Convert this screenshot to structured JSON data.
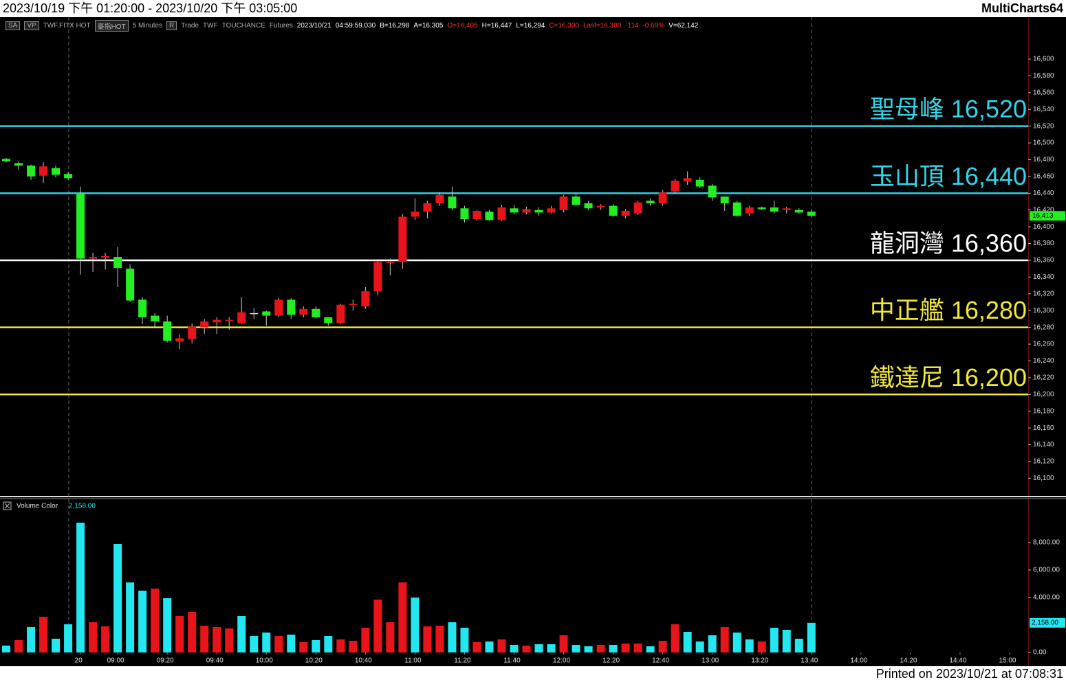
{
  "header": {
    "title": "2023/10/19 下午 01:20:00 - 2023/10/20 下午 03:05:00",
    "app": "MultiCharts64",
    "toolbar": [
      {
        "text": "SA",
        "boxed": true
      },
      {
        "text": "VP",
        "boxed": true
      },
      {
        "text": "TWF.FITX HOT"
      },
      {
        "text": "臺指HOT",
        "boxed": true
      },
      {
        "text": "5 Minutes"
      },
      {
        "text": "R",
        "boxed": true
      },
      {
        "text": "Trade"
      },
      {
        "text": "TWF"
      },
      {
        "text": "TOUCHANCE"
      },
      {
        "text": "Futures"
      },
      {
        "text": "2023/10/21",
        "color": "#ffffff"
      },
      {
        "text": "04:59:59.030",
        "color": "#ffffff"
      },
      {
        "text": "B=16,298",
        "color": "#ffffff"
      },
      {
        "text": "A=16,305",
        "color": "#ffffff"
      },
      {
        "text": "O=16,405",
        "color": "#ff3030"
      },
      {
        "text": "H=16,447",
        "color": "#ffffff"
      },
      {
        "text": "L=16,294",
        "color": "#ffffff"
      },
      {
        "text": "C=16,300",
        "color": "#ff3030"
      },
      {
        "text": "Last=16,300",
        "color": "#ff3030"
      },
      {
        "text": "-114",
        "color": "#ff3030"
      },
      {
        "text": "-0.69%",
        "color": "#ff3030"
      },
      {
        "text": "V=62,142",
        "color": "#ffffff"
      }
    ]
  },
  "footer": "Printed on 2023/10/21 at 07:08:31",
  "chart_data": [
    {
      "type": "candlestick",
      "up_color": "#e8141a",
      "down_color": "#22ee22",
      "xlim": [
        -0.5,
        82.5
      ],
      "ylim": [
        16079,
        16650
      ],
      "open": [
        16481,
        16476,
        16473,
        16461,
        16470,
        16463,
        16440,
        16362,
        16363,
        16364,
        16350,
        16313,
        16294,
        16287,
        16263,
        16266,
        16280,
        16286,
        16288,
        16285,
        16297,
        16299,
        16294,
        16313,
        16295,
        16302,
        16292,
        16285,
        16307,
        16305,
        16323,
        16357,
        16358,
        16412,
        16418,
        16428,
        16436,
        16422,
        16409,
        16418,
        16408,
        16422,
        16417,
        16420,
        16417,
        16420,
        16436,
        16428,
        16423,
        16425,
        16413,
        16416,
        16431,
        16428,
        16442,
        16454,
        16456,
        16449,
        16436,
        16429,
        16416,
        16423,
        16423,
        16420,
        16420,
        16418
      ],
      "high": [
        16482,
        16478,
        16474,
        16477,
        16473,
        16465,
        16448,
        16369,
        16369,
        16376,
        16355,
        16316,
        16297,
        16294,
        16272,
        16285,
        16290,
        16292,
        16292,
        16316,
        16303,
        16300,
        16315,
        16315,
        16305,
        16305,
        16292,
        16308,
        16313,
        16328,
        16361,
        16362,
        16415,
        16434,
        16431,
        16441,
        16448,
        16425,
        16420,
        16420,
        16426,
        16426,
        16424,
        16423,
        16425,
        16438,
        16440,
        16431,
        16427,
        16427,
        16421,
        16431,
        16434,
        16444,
        16457,
        16466,
        16459,
        16451,
        16436,
        16431,
        16425,
        16424,
        16431,
        16424,
        16422,
        16420
      ],
      "low": [
        16477,
        16468,
        16456,
        16452,
        16459,
        16456,
        16343,
        16346,
        16349,
        16328,
        16310,
        16284,
        16280,
        16262,
        16254,
        16261,
        16272,
        16272,
        16277,
        16284,
        16290,
        16282,
        16292,
        16290,
        16292,
        16291,
        16282,
        16284,
        16300,
        16302,
        16318,
        16342,
        16350,
        16408,
        16410,
        16425,
        16420,
        16405,
        16407,
        16407,
        16407,
        16415,
        16415,
        16413,
        16416,
        16417,
        16425,
        16420,
        16420,
        16412,
        16410,
        16414,
        16425,
        16425,
        16440,
        16450,
        16446,
        16431,
        16419,
        16412,
        16413,
        16420,
        16416,
        16416,
        16415,
        16412
      ],
      "close": [
        16478,
        16473,
        16460,
        16472,
        16462,
        16458,
        16362,
        16364,
        16365,
        16351,
        16312,
        16292,
        16287,
        16264,
        16267,
        16281,
        16287,
        16289,
        16289,
        16298,
        16297,
        16294,
        16313,
        16295,
        16302,
        16292,
        16285,
        16307,
        16308,
        16323,
        16358,
        16358,
        16412,
        16418,
        16428,
        16438,
        16422,
        16409,
        16419,
        16408,
        16423,
        16417,
        16421,
        16417,
        16422,
        16436,
        16426,
        16422,
        16425,
        16413,
        16419,
        16429,
        16428,
        16441,
        16455,
        16458,
        16448,
        16435,
        16428,
        16413,
        16423,
        16421,
        16418,
        16422,
        16417,
        16413
      ],
      "yticks": [
        {
          "value": 16100,
          "label": "16,100"
        },
        {
          "value": 16120,
          "label": "16,120"
        },
        {
          "value": 16140,
          "label": "16,140"
        },
        {
          "value": 16160,
          "label": "16,160"
        },
        {
          "value": 16180,
          "label": "16,180"
        },
        {
          "value": 16200,
          "label": "16,200"
        },
        {
          "value": 16220,
          "label": "16,220"
        },
        {
          "value": 16240,
          "label": "16,240"
        },
        {
          "value": 16260,
          "label": "16,260"
        },
        {
          "value": 16280,
          "label": "16,280"
        },
        {
          "value": 16300,
          "label": "16,300"
        },
        {
          "value": 16320,
          "label": "16,320"
        },
        {
          "value": 16340,
          "label": "16,340"
        },
        {
          "value": 16360,
          "label": "16,360"
        },
        {
          "value": 16380,
          "label": "16,380"
        },
        {
          "value": 16400,
          "label": "16,400"
        },
        {
          "value": 16420,
          "label": "16,420"
        },
        {
          "value": 16440,
          "label": "16,440"
        },
        {
          "value": 16460,
          "label": "16,460"
        },
        {
          "value": 16480,
          "label": "16,480"
        },
        {
          "value": 16500,
          "label": "16,500"
        },
        {
          "value": 16520,
          "label": "16,520"
        },
        {
          "value": 16540,
          "label": "16,540"
        },
        {
          "value": 16560,
          "label": "16,560"
        },
        {
          "value": 16580,
          "label": "16,580"
        },
        {
          "value": 16600,
          "label": "16,600"
        }
      ],
      "levels": [
        {
          "label": "聖母峰 16,520",
          "value": 16520,
          "color": "#33d4e8"
        },
        {
          "label": "玉山頂 16,440",
          "value": 16440,
          "color": "#33d4e8"
        },
        {
          "label": "龍洞灣 16,360",
          "value": 16360,
          "color": "#ffffff"
        },
        {
          "label": "中正艦 16,280",
          "value": 16280,
          "color": "#f2e83a"
        },
        {
          "label": "鐵達尼 16,200",
          "value": 16200,
          "color": "#f2e83a"
        }
      ],
      "last_price": {
        "value": 16413,
        "label": "16,413"
      }
    },
    {
      "type": "bar",
      "title": "Volume Color",
      "current_label": "2,158.00",
      "xlim": [
        -0.5,
        82.5
      ],
      "ylim": [
        0,
        11100
      ],
      "values": [
        500,
        900,
        1850,
        2600,
        1000,
        2050,
        9450,
        2200,
        1900,
        7900,
        5100,
        4500,
        4650,
        3950,
        2650,
        2950,
        1950,
        1850,
        1750,
        2650,
        1200,
        1450,
        1200,
        1300,
        750,
        900,
        1200,
        950,
        850,
        1800,
        3850,
        2200,
        5100,
        4000,
        1900,
        1950,
        2200,
        1800,
        750,
        800,
        950,
        550,
        500,
        600,
        600,
        1250,
        550,
        450,
        550,
        550,
        650,
        650,
        450,
        850,
        2050,
        1500,
        800,
        1250,
        1850,
        1450,
        950,
        800,
        1800,
        1650,
        1000,
        2158
      ],
      "colors": [
        "#22e6f0",
        "#e8141a",
        "#22e6f0",
        "#e8141a",
        "#22e6f0",
        "#22e6f0",
        "#22e6f0",
        "#e8141a",
        "#e8141a",
        "#22e6f0",
        "#22e6f0",
        "#22e6f0",
        "#e8141a",
        "#22e6f0",
        "#e8141a",
        "#e8141a",
        "#e8141a",
        "#e8141a",
        "#e8141a",
        "#22e6f0",
        "#22e6f0",
        "#22e6f0",
        "#e8141a",
        "#22e6f0",
        "#e8141a",
        "#22e6f0",
        "#22e6f0",
        "#e8141a",
        "#e8141a",
        "#e8141a",
        "#e8141a",
        "#e8141a",
        "#e8141a",
        "#22e6f0",
        "#e8141a",
        "#e8141a",
        "#22e6f0",
        "#22e6f0",
        "#e8141a",
        "#22e6f0",
        "#e8141a",
        "#22e6f0",
        "#e8141a",
        "#22e6f0",
        "#22e6f0",
        "#e8141a",
        "#22e6f0",
        "#22e6f0",
        "#e8141a",
        "#22e6f0",
        "#e8141a",
        "#e8141a",
        "#22e6f0",
        "#e8141a",
        "#e8141a",
        "#22e6f0",
        "#22e6f0",
        "#22e6f0",
        "#e8141a",
        "#22e6f0",
        "#22e6f0",
        "#e8141a",
        "#22e6f0",
        "#22e6f0",
        "#22e6f0",
        "#22e6f0"
      ],
      "yticks": [
        {
          "value": 0,
          "label": "0.00"
        },
        {
          "value": 4000,
          "label": "4,000.00"
        },
        {
          "value": 6000,
          "label": "6,000.00"
        },
        {
          "value": 8000,
          "label": "8,000.00"
        }
      ],
      "last_volume": {
        "value": 2158,
        "label": "2,158.00"
      },
      "xticks": [
        {
          "value": 6,
          "label": "20"
        },
        {
          "value": 9,
          "label": "09:00"
        },
        {
          "value": 13,
          "label": "09:20"
        },
        {
          "value": 17,
          "label": "09:40"
        },
        {
          "value": 21,
          "label": "10:00"
        },
        {
          "value": 25,
          "label": "10:20"
        },
        {
          "value": 29,
          "label": "10:40"
        },
        {
          "value": 33,
          "label": "11:00"
        },
        {
          "value": 37,
          "label": "11:20"
        },
        {
          "value": 41,
          "label": "11:40"
        },
        {
          "value": 45,
          "label": "12:00"
        },
        {
          "value": 49,
          "label": "12:20"
        },
        {
          "value": 53,
          "label": "12:40"
        },
        {
          "value": 57,
          "label": "13:00"
        },
        {
          "value": 61,
          "label": "13:20"
        },
        {
          "value": 65,
          "label": "13:40"
        },
        {
          "value": 69,
          "label": "14:00"
        },
        {
          "value": 73,
          "label": "14:20"
        },
        {
          "value": 77,
          "label": "14:40"
        },
        {
          "value": 81,
          "label": "15:00"
        }
      ]
    }
  ]
}
